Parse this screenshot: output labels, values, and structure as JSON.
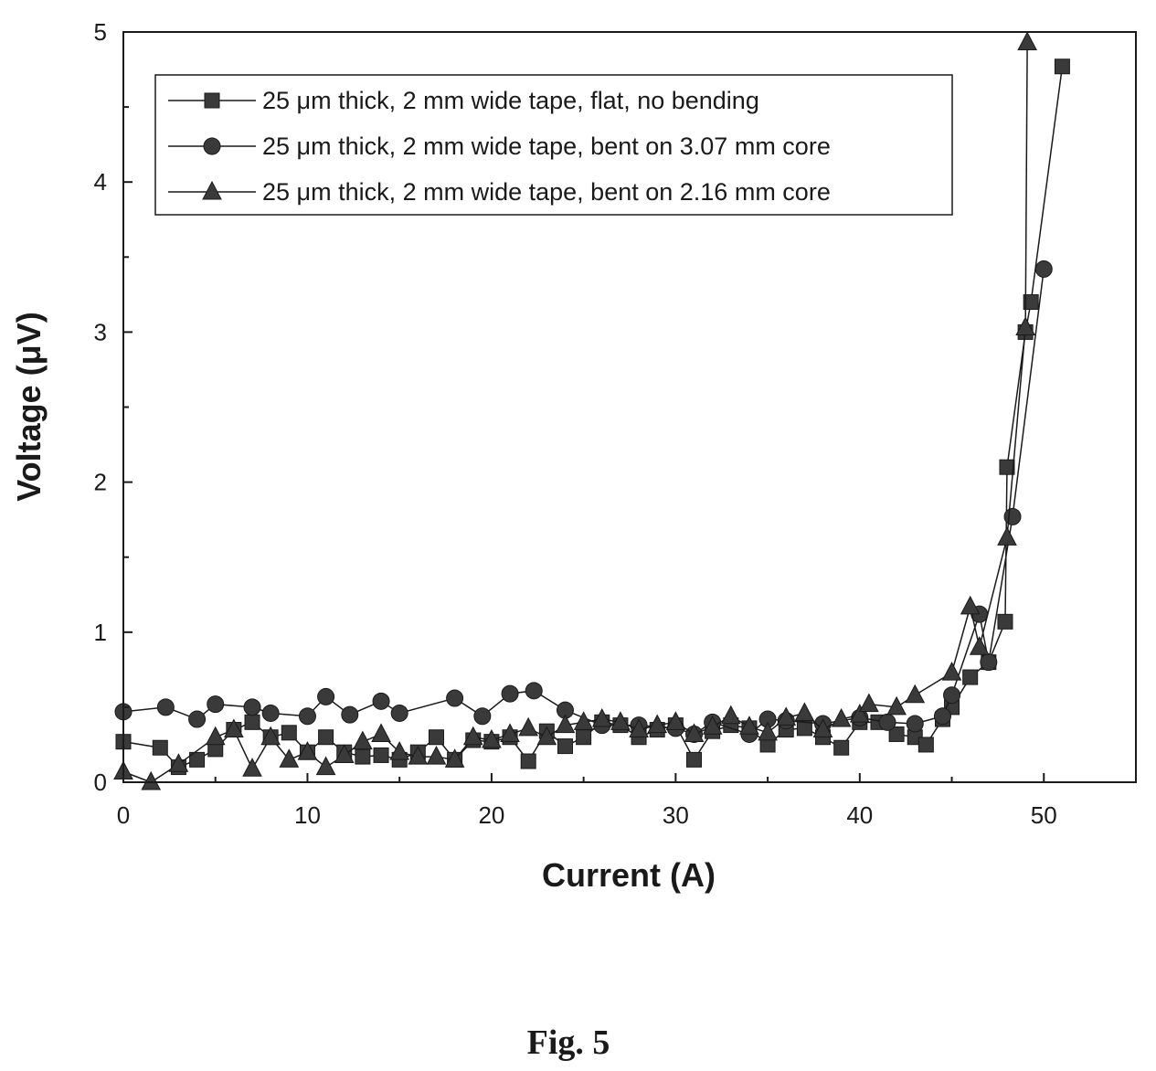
{
  "figure_caption": "Fig. 5",
  "chart_data": {
    "type": "line",
    "xlabel": "Current (A)",
    "ylabel": "Voltage (μV)",
    "xlim": [
      0,
      55
    ],
    "ylim": [
      0,
      5
    ],
    "xticks": [
      "0",
      "10",
      "20",
      "30",
      "40",
      "50"
    ],
    "yticks": [
      "0",
      "1",
      "2",
      "3",
      "4",
      "5"
    ],
    "grid": false,
    "legend_position": "top-left",
    "series": [
      {
        "name": "25 μm thick, 2 mm wide tape, flat, no bending",
        "marker": "square",
        "x": [
          0,
          2,
          3,
          4,
          5,
          6,
          7,
          8,
          9,
          10,
          11,
          12,
          13,
          14,
          15,
          16,
          17,
          18,
          19,
          20,
          21,
          22,
          23,
          24,
          25,
          26,
          27,
          28,
          29,
          30,
          31,
          32,
          33,
          34,
          35,
          36,
          37,
          38,
          39,
          40,
          41,
          42,
          43,
          43.6,
          44.5,
          45,
          46,
          47,
          47.9,
          48,
          49,
          49.3,
          51
        ],
        "y": [
          0.27,
          0.23,
          0.1,
          0.15,
          0.22,
          0.35,
          0.4,
          0.3,
          0.33,
          0.2,
          0.3,
          0.2,
          0.17,
          0.18,
          0.15,
          0.2,
          0.3,
          0.15,
          0.28,
          0.27,
          0.3,
          0.14,
          0.34,
          0.24,
          0.3,
          0.4,
          0.38,
          0.3,
          0.35,
          0.38,
          0.15,
          0.34,
          0.38,
          0.36,
          0.25,
          0.35,
          0.36,
          0.3,
          0.23,
          0.4,
          0.4,
          0.32,
          0.3,
          0.25,
          0.42,
          0.5,
          0.7,
          0.8,
          1.07,
          2.1,
          3.0,
          3.2,
          4.77
        ]
      },
      {
        "name": "25 μm thick, 2 mm wide tape, bent on 3.07 mm core",
        "marker": "circle",
        "x": [
          0,
          2.3,
          4,
          5,
          7,
          8,
          10,
          11,
          12.3,
          14,
          15,
          18,
          19.5,
          21,
          22.3,
          24,
          26,
          28,
          30,
          31,
          32,
          34,
          35,
          36,
          38,
          40,
          41.5,
          43,
          44.5,
          45,
          46.5,
          47,
          48.3,
          50
        ],
        "y": [
          0.47,
          0.5,
          0.42,
          0.52,
          0.5,
          0.46,
          0.44,
          0.57,
          0.45,
          0.54,
          0.46,
          0.56,
          0.44,
          0.59,
          0.61,
          0.48,
          0.38,
          0.38,
          0.36,
          0.32,
          0.4,
          0.32,
          0.42,
          0.41,
          0.39,
          0.43,
          0.4,
          0.39,
          0.44,
          0.58,
          1.12,
          0.8,
          1.77,
          3.42
        ]
      },
      {
        "name": "25 μm thick, 2 mm wide tape, bent on 2.16 mm core",
        "marker": "triangle",
        "x": [
          0,
          1.5,
          3,
          5,
          6,
          7,
          8,
          9,
          10,
          11,
          12,
          13,
          14,
          15,
          16,
          17,
          18,
          19,
          20,
          21,
          22,
          23,
          24,
          25,
          26,
          27,
          28,
          29,
          30,
          31,
          32,
          33,
          34,
          35,
          36,
          37,
          38,
          39,
          40,
          40.5,
          42,
          43,
          45,
          46,
          46.5,
          48,
          49,
          49.1
        ],
        "y": [
          0.07,
          0.0,
          0.12,
          0.3,
          0.35,
          0.09,
          0.3,
          0.15,
          0.2,
          0.1,
          0.18,
          0.27,
          0.32,
          0.2,
          0.17,
          0.17,
          0.15,
          0.3,
          0.28,
          0.32,
          0.36,
          0.3,
          0.38,
          0.4,
          0.42,
          0.4,
          0.35,
          0.38,
          0.4,
          0.32,
          0.37,
          0.44,
          0.37,
          0.33,
          0.43,
          0.46,
          0.35,
          0.42,
          0.45,
          0.52,
          0.5,
          0.58,
          0.73,
          1.17,
          0.9,
          1.63,
          3.03,
          4.93
        ]
      }
    ]
  }
}
